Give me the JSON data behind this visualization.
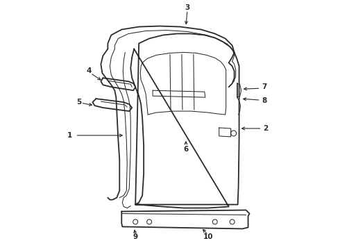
{
  "background_color": "#ffffff",
  "line_color": "#2a2a2a",
  "label_color": "#111111",
  "fig_width": 4.9,
  "fig_height": 3.6,
  "dpi": 100
}
